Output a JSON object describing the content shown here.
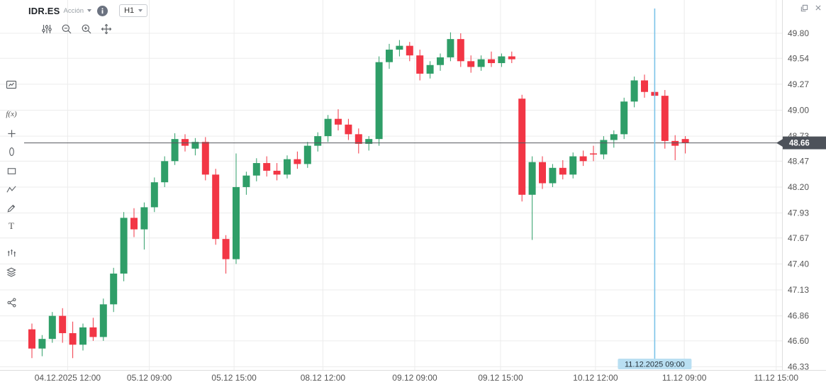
{
  "header": {
    "symbol": "IDR.ES",
    "instrument_type": "Acción",
    "timeframe": "H1"
  },
  "window_controls": {
    "icons": [
      "expand-icon",
      "close-icon"
    ]
  },
  "chart_toolbar": {
    "icons": [
      "indicators-settings-icon",
      "zoom-out-icon",
      "zoom-in-icon",
      "pan-icon"
    ]
  },
  "left_toolbar": {
    "fx_label": "f(x)",
    "text_tool_label": "T",
    "icons": [
      "chart-display-icon",
      "function-indicators-icon",
      "add-icon",
      "ellipse-tool-icon",
      "rectangle-tool-icon",
      "zigzag-tool-icon",
      "brush-tool-icon",
      "text-tool-icon",
      "pattern-tool-icon",
      "layers-icon",
      "share-icon"
    ]
  },
  "chart_data": {
    "type": "candlestick",
    "symbol": "IDR.ES",
    "timeframe": "H1",
    "ylim": [
      46.33,
      49.8
    ],
    "price_ticks": [
      "49.80",
      "49.54",
      "49.27",
      "49.00",
      "48.73",
      "48.47",
      "48.20",
      "47.93",
      "47.67",
      "47.40",
      "47.13",
      "46.86",
      "46.60",
      "46.33"
    ],
    "time_ticks": [
      {
        "label": "04.12.2025 12:00",
        "pos": 3.5
      },
      {
        "label": "05.12 09:00",
        "pos": 11.5
      },
      {
        "label": "05.12 15:00",
        "pos": 19.8
      },
      {
        "label": "08.12 12:00",
        "pos": 28.5
      },
      {
        "label": "09.12 09:00",
        "pos": 37.5
      },
      {
        "label": "09.12 15:00",
        "pos": 45.9
      },
      {
        "label": "10.12 12:00",
        "pos": 55.2
      },
      {
        "label": "11.12 09:00",
        "pos": 63.9
      },
      {
        "label": "11.12 15:00",
        "pos": 72.9
      }
    ],
    "last_price": "48.66",
    "crosshair": {
      "label": "11.12.2025 09:00",
      "pos": 61
    },
    "colors": {
      "up": "#2F9E68",
      "down": "#F23645",
      "grid": "#ECECEC",
      "axis_text": "#555555",
      "price_line": "#55585E",
      "badge_bg": "#4D525A",
      "badge_text": "#FFFFFF",
      "crosshair": "#7CC4E8",
      "crosshair_label_bg": "#B9DFF2",
      "crosshair_label_text": "#24313A"
    },
    "candles": [
      [
        46.72,
        46.78,
        46.42,
        46.52
      ],
      [
        46.52,
        46.66,
        46.44,
        46.62
      ],
      [
        46.62,
        46.9,
        46.58,
        46.86
      ],
      [
        46.86,
        46.94,
        46.58,
        46.68
      ],
      [
        46.68,
        46.8,
        46.42,
        46.56
      ],
      [
        46.56,
        46.78,
        46.5,
        46.74
      ],
      [
        46.74,
        46.84,
        46.6,
        46.64
      ],
      [
        46.64,
        47.04,
        46.6,
        46.98
      ],
      [
        46.98,
        47.36,
        46.9,
        47.3
      ],
      [
        47.3,
        47.94,
        47.22,
        47.88
      ],
      [
        47.88,
        47.98,
        47.68,
        47.76
      ],
      [
        47.76,
        48.04,
        47.55,
        47.99
      ],
      [
        47.99,
        48.3,
        47.94,
        48.25
      ],
      [
        48.25,
        48.52,
        48.2,
        48.47
      ],
      [
        48.47,
        48.76,
        48.43,
        48.7
      ],
      [
        48.7,
        48.75,
        48.57,
        48.63
      ],
      [
        48.6,
        48.71,
        48.53,
        48.67
      ],
      [
        48.67,
        48.72,
        48.27,
        48.33
      ],
      [
        48.33,
        48.39,
        47.6,
        47.66
      ],
      [
        47.66,
        47.7,
        47.3,
        47.45
      ],
      [
        47.45,
        48.55,
        47.4,
        48.2
      ],
      [
        48.2,
        48.36,
        48.12,
        48.32
      ],
      [
        48.32,
        48.5,
        48.26,
        48.45
      ],
      [
        48.45,
        48.52,
        48.31,
        48.37
      ],
      [
        48.37,
        48.45,
        48.27,
        48.33
      ],
      [
        48.33,
        48.53,
        48.29,
        48.49
      ],
      [
        48.49,
        48.57,
        48.39,
        48.44
      ],
      [
        48.44,
        48.67,
        48.4,
        48.63
      ],
      [
        48.63,
        48.77,
        48.57,
        48.73
      ],
      [
        48.73,
        48.95,
        48.67,
        48.91
      ],
      [
        48.91,
        49.01,
        48.79,
        48.85
      ],
      [
        48.85,
        48.91,
        48.69,
        48.75
      ],
      [
        48.75,
        48.81,
        48.55,
        48.65
      ],
      [
        48.65,
        48.73,
        48.58,
        48.7
      ],
      [
        48.7,
        49.56,
        48.63,
        49.5
      ],
      [
        49.5,
        49.69,
        49.43,
        49.63
      ],
      [
        49.63,
        49.73,
        49.56,
        49.67
      ],
      [
        49.67,
        49.71,
        49.51,
        49.57
      ],
      [
        49.57,
        49.63,
        49.31,
        49.38
      ],
      [
        49.38,
        49.51,
        49.33,
        49.47
      ],
      [
        49.47,
        49.59,
        49.41,
        49.55
      ],
      [
        49.55,
        49.81,
        49.51,
        49.74
      ],
      [
        49.74,
        49.8,
        49.45,
        49.51
      ],
      [
        49.51,
        49.57,
        49.39,
        49.45
      ],
      [
        49.45,
        49.57,
        49.41,
        49.53
      ],
      [
        49.53,
        49.61,
        49.45,
        49.49
      ],
      [
        49.49,
        49.59,
        49.45,
        49.56
      ],
      [
        49.56,
        49.61,
        49.49,
        49.53
      ],
      [
        49.12,
        49.16,
        48.05,
        48.12
      ],
      [
        48.12,
        48.52,
        47.65,
        48.46
      ],
      [
        48.46,
        48.52,
        48.18,
        48.24
      ],
      [
        48.24,
        48.44,
        48.2,
        48.4
      ],
      [
        48.4,
        48.48,
        48.28,
        48.33
      ],
      [
        48.33,
        48.56,
        48.29,
        48.52
      ],
      [
        48.52,
        48.58,
        48.42,
        48.47
      ],
      [
        48.55,
        48.63,
        48.47,
        48.54
      ],
      [
        48.54,
        48.73,
        48.49,
        48.69
      ],
      [
        48.69,
        48.79,
        48.61,
        48.75
      ],
      [
        48.75,
        49.13,
        48.7,
        49.09
      ],
      [
        49.09,
        49.35,
        49.03,
        49.31
      ],
      [
        49.31,
        49.37,
        49.13,
        49.19
      ],
      [
        49.19,
        49.33,
        49.11,
        49.15
      ],
      [
        49.15,
        49.21,
        48.6,
        48.68
      ],
      [
        48.68,
        48.74,
        48.48,
        48.63
      ],
      [
        48.7,
        48.73,
        48.55,
        48.66
      ]
    ]
  }
}
